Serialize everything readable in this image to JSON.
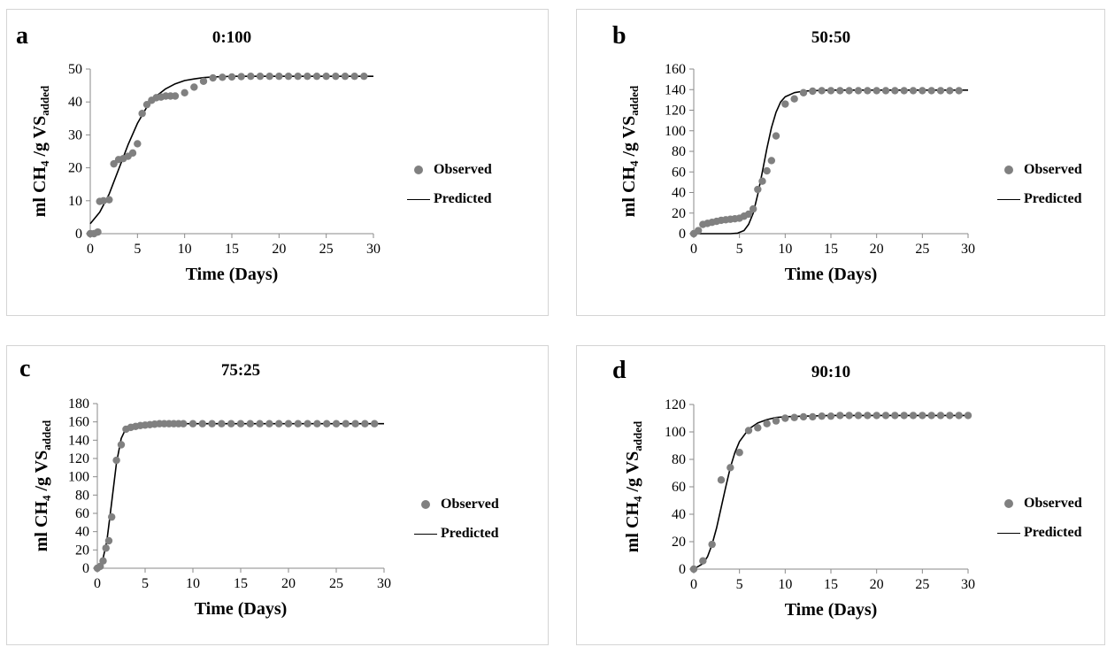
{
  "legend": {
    "observed": "Observed",
    "predicted": "Predicted"
  },
  "colors": {
    "observed": "#808080",
    "predicted": "#000000",
    "frame": "#d4d4d4"
  },
  "chart_data": [
    {
      "type": "scatter",
      "letter": "a",
      "title": "0:100",
      "xlabel": "Time (Days)",
      "ylabel_main": "ml CH",
      "ylabel_sub1": "4",
      "ylabel_mid": " /g VS",
      "ylabel_sub2": "added",
      "xlim": [
        0,
        30
      ],
      "ylim": [
        0,
        50
      ],
      "xticks": [
        0,
        5,
        10,
        15,
        20,
        25,
        30
      ],
      "yticks": [
        0,
        10,
        20,
        30,
        40,
        50
      ],
      "grid": false,
      "legend_position": "right",
      "series": [
        {
          "name": "Observed",
          "kind": "points",
          "x": [
            0,
            0.4,
            0.8,
            1,
            1.4,
            2,
            2.5,
            3,
            3.5,
            4,
            4.5,
            5,
            5.5,
            6,
            6.5,
            7,
            7.5,
            8,
            8.5,
            9,
            10,
            11,
            12,
            13,
            14,
            15,
            16,
            17,
            18,
            19,
            20,
            21,
            22,
            23,
            24,
            25,
            26,
            27,
            28,
            29
          ],
          "y": [
            0,
            0,
            0.5,
            9.8,
            10,
            10.3,
            21.2,
            22.5,
            22.8,
            23.5,
            24.5,
            27.3,
            36.5,
            39.2,
            40.5,
            41.3,
            41.5,
            41.8,
            41.8,
            41.8,
            42.8,
            44.5,
            46.3,
            47.3,
            47.5,
            47.6,
            47.7,
            47.8,
            47.8,
            47.8,
            47.8,
            47.8,
            47.8,
            47.8,
            47.8,
            47.8,
            47.8,
            47.8,
            47.8,
            47.8
          ]
        },
        {
          "name": "Predicted",
          "kind": "line",
          "x": [
            0,
            1,
            2,
            3,
            4,
            5,
            6,
            7,
            8,
            9,
            10,
            11,
            12,
            13,
            14,
            15,
            16,
            18,
            20,
            25,
            30
          ],
          "y": [
            3,
            6.5,
            12,
            19.5,
            27,
            33.5,
            38.5,
            41.8,
            44,
            45.5,
            46.5,
            47,
            47.4,
            47.6,
            47.7,
            47.8,
            47.8,
            47.8,
            47.8,
            47.8,
            47.8
          ]
        }
      ]
    },
    {
      "type": "scatter",
      "letter": "b",
      "title": "50:50",
      "xlabel": "Time (Days)",
      "ylabel_main": "ml CH",
      "ylabel_sub1": "4",
      "ylabel_mid": " /g VS",
      "ylabel_sub2": "added",
      "xlim": [
        0,
        30
      ],
      "ylim": [
        0,
        160
      ],
      "xticks": [
        0,
        5,
        10,
        15,
        20,
        25,
        30
      ],
      "yticks": [
        0,
        20,
        40,
        60,
        80,
        100,
        120,
        140,
        160
      ],
      "grid": false,
      "legend_position": "right",
      "series": [
        {
          "name": "Observed",
          "kind": "points",
          "x": [
            0,
            0.5,
            1,
            1.5,
            2,
            2.5,
            3,
            3.5,
            4,
            4.5,
            5,
            5.5,
            6,
            6.5,
            7,
            7.5,
            8,
            8.5,
            9,
            10,
            11,
            12,
            13,
            14,
            15,
            16,
            17,
            18,
            19,
            20,
            21,
            22,
            23,
            24,
            25,
            26,
            27,
            28,
            29
          ],
          "y": [
            0,
            3,
            9,
            10,
            11,
            12,
            13,
            13.5,
            14,
            14.5,
            15,
            17,
            19,
            24,
            43,
            51,
            61,
            71,
            95,
            126,
            131,
            137,
            138.5,
            139,
            139,
            139,
            139,
            139,
            139,
            139,
            139,
            139,
            139,
            139,
            139,
            139,
            139,
            139,
            139
          ]
        },
        {
          "name": "Predicted",
          "kind": "line",
          "x": [
            0,
            3,
            4,
            4.8,
            5.5,
            6,
            6.5,
            7,
            7.5,
            8,
            8.5,
            9,
            9.5,
            10,
            11,
            12,
            13,
            15,
            20,
            25,
            30
          ],
          "y": [
            0,
            0,
            0,
            0.5,
            3,
            9,
            20,
            38,
            60,
            83,
            103,
            118,
            128,
            133,
            137,
            138.5,
            139,
            139.5,
            139.5,
            139.5,
            139.5
          ]
        }
      ]
    },
    {
      "type": "scatter",
      "letter": "c",
      "title": "75:25",
      "xlabel": "Time (Days)",
      "ylabel_main": "ml CH",
      "ylabel_sub1": "4",
      "ylabel_mid": " /g VS",
      "ylabel_sub2": "added",
      "xlim": [
        0,
        30
      ],
      "ylim": [
        0,
        180
      ],
      "xticks": [
        0,
        5,
        10,
        15,
        20,
        25,
        30
      ],
      "yticks": [
        0,
        20,
        40,
        60,
        80,
        100,
        120,
        140,
        160,
        180
      ],
      "grid": false,
      "legend_position": "right",
      "series": [
        {
          "name": "Observed",
          "kind": "points",
          "x": [
            0,
            0.3,
            0.6,
            0.9,
            1.2,
            1.5,
            2,
            2.5,
            3,
            3.5,
            4,
            4.5,
            5,
            5.5,
            6,
            6.5,
            7,
            7.5,
            8,
            8.5,
            9,
            10,
            11,
            12,
            13,
            14,
            15,
            16,
            17,
            18,
            19,
            20,
            21,
            22,
            23,
            24,
            25,
            26,
            27,
            28,
            29
          ],
          "y": [
            0,
            2,
            8,
            22,
            30,
            56,
            118,
            135,
            152,
            154,
            155,
            156,
            156.5,
            157,
            157.5,
            158,
            158,
            158,
            158,
            158,
            158,
            158,
            158,
            158,
            158,
            158,
            158,
            158,
            158,
            158,
            158,
            158,
            158,
            158,
            158,
            158,
            158,
            158,
            158,
            158,
            158
          ]
        },
        {
          "name": "Predicted",
          "kind": "line",
          "x": [
            0,
            0.5,
            1,
            1.5,
            2,
            2.5,
            3,
            3.5,
            4,
            5,
            6,
            8,
            10,
            15,
            20,
            25,
            30
          ],
          "y": [
            0,
            6,
            30,
            72,
            115,
            142,
            153,
            156,
            157.5,
            158,
            158,
            158,
            158,
            158,
            158,
            158,
            158
          ]
        }
      ]
    },
    {
      "type": "scatter",
      "letter": "d",
      "title": "90:10",
      "xlabel": "Time (Days)",
      "ylabel_main": "ml CH",
      "ylabel_sub1": "4",
      "ylabel_mid": " /g VS",
      "ylabel_sub2": "added",
      "xlim": [
        0,
        30
      ],
      "ylim": [
        0,
        120
      ],
      "xticks": [
        0,
        5,
        10,
        15,
        20,
        25,
        30
      ],
      "yticks": [
        0,
        20,
        40,
        60,
        80,
        100,
        120
      ],
      "grid": false,
      "legend_position": "right",
      "series": [
        {
          "name": "Observed",
          "kind": "points",
          "x": [
            0,
            1,
            2,
            3,
            4,
            5,
            6,
            7,
            8,
            9,
            10,
            11,
            12,
            13,
            14,
            15,
            16,
            17,
            18,
            19,
            20,
            21,
            22,
            23,
            24,
            25,
            26,
            27,
            28,
            29,
            30
          ],
          "y": [
            0,
            6,
            18,
            65,
            74,
            85,
            101,
            103,
            106,
            108,
            110,
            110.5,
            111,
            111,
            111.5,
            111.5,
            112,
            112,
            112,
            112,
            112,
            112,
            112,
            112,
            112,
            112,
            112,
            112,
            112,
            112,
            112
          ]
        },
        {
          "name": "Predicted",
          "kind": "line",
          "x": [
            0,
            1,
            1.5,
            2,
            2.5,
            3,
            3.5,
            4,
            4.5,
            5,
            6,
            7,
            8,
            9,
            10,
            12,
            15,
            20,
            25,
            30
          ],
          "y": [
            0,
            4,
            9,
            18,
            30,
            45,
            60,
            74,
            85,
            93,
            102,
            106.5,
            109,
            110.5,
            111,
            111.5,
            112,
            112,
            112,
            112
          ]
        }
      ]
    }
  ]
}
